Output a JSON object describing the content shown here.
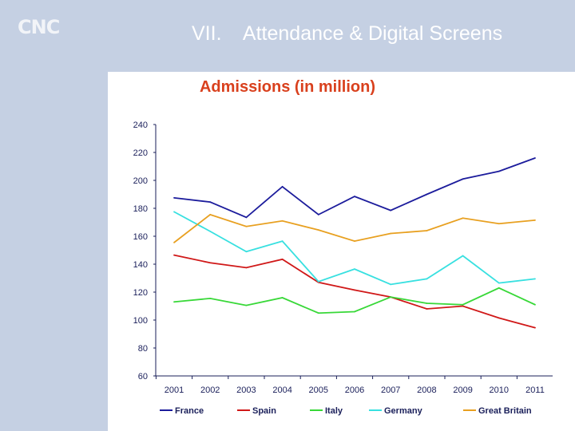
{
  "header": {
    "logo": "CNC",
    "title": "VII.    Attendance & Digital Screens"
  },
  "chart_data": {
    "type": "line",
    "title": "Admissions (in million)",
    "x": [
      2001,
      2002,
      2003,
      2004,
      2005,
      2006,
      2007,
      2008,
      2009,
      2010,
      2011
    ],
    "ylim": [
      60,
      240
    ],
    "yticks": [
      60,
      80,
      100,
      120,
      140,
      160,
      180,
      200,
      220,
      240
    ],
    "grid": false,
    "legend": "bottom",
    "series": [
      {
        "name": "France",
        "color": "#1c1c9c",
        "values": [
          187.5,
          184.5,
          173.5,
          195.5,
          175.5,
          188.5,
          178.5,
          190,
          201,
          206.5,
          216
        ]
      },
      {
        "name": "Spain",
        "color": "#d01818",
        "values": [
          146.5,
          141,
          137.5,
          143.5,
          127,
          121.5,
          116.5,
          108,
          110,
          101.5,
          94.5
        ]
      },
      {
        "name": "Italy",
        "color": "#38d838",
        "values": [
          113,
          115.5,
          110.5,
          116,
          105,
          106,
          116.5,
          112,
          111,
          123,
          111
        ]
      },
      {
        "name": "Germany",
        "color": "#38e0e0",
        "values": [
          177.5,
          163.5,
          149,
          156.5,
          127.5,
          136.5,
          125.5,
          129.5,
          146,
          126.5,
          129.5
        ]
      },
      {
        "name": "Great Britain",
        "color": "#e8a020",
        "values": [
          155.5,
          175.5,
          167,
          171,
          164.5,
          156.5,
          162,
          164,
          173,
          169,
          171.5
        ]
      }
    ]
  }
}
